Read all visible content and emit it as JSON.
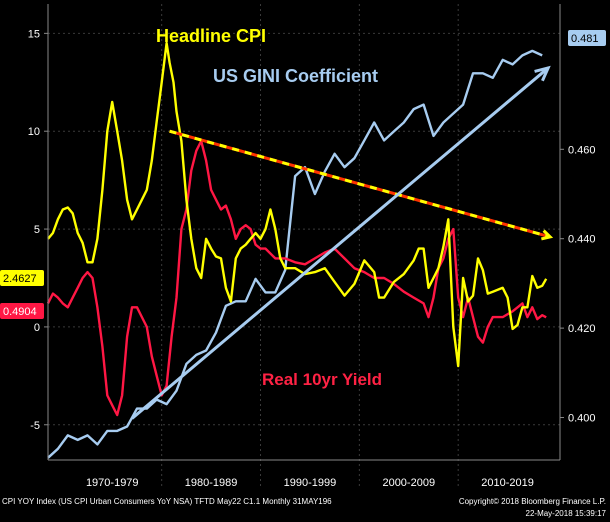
{
  "chart_data": {
    "type": "line",
    "titles": {
      "cpi": "Headline CPI",
      "gini": "US GINI Coefficient",
      "yield": "Real 10yr Yield"
    },
    "x_range": [
      1968.0,
      2019.8
    ],
    "left_axis": {
      "ticks": [
        "15",
        "10",
        "5",
        "0",
        "-5"
      ],
      "values": [
        15,
        10,
        5,
        0,
        -5
      ],
      "range": [
        -6.8,
        16.5
      ]
    },
    "right_axis": {
      "ticks": [
        "0.460",
        "0.440",
        "0.420",
        "0.400"
      ],
      "values": [
        0.46,
        0.44,
        0.42,
        0.4
      ],
      "range": [
        0.3905,
        0.4925
      ]
    },
    "x_labels": [
      "1970-1979",
      "1980-1989",
      "1990-1999",
      "2000-2009",
      "2010-2019"
    ],
    "x_label_centers": [
      1974.5,
      1984.5,
      1994.5,
      2004.5,
      2014.5
    ],
    "x_separators": [
      1979.5,
      1989.5,
      1999.5,
      2009.5
    ],
    "last_values": {
      "cpi": "2.4627",
      "yield": "0.4904",
      "gini": "0.481"
    },
    "colors": {
      "cpi": "#ffff00",
      "yield": "#ff1744",
      "gini": "#a7ccf0",
      "trend_dash_a": "#ffff00",
      "trend_dash_b": "#ff3300",
      "arrow": "#a7ccf0"
    },
    "series": [
      {
        "name": "Headline CPI",
        "axis": "left",
        "x": [
          1968.0,
          1968.5,
          1969.0,
          1969.5,
          1970.0,
          1970.5,
          1971.0,
          1971.5,
          1972.0,
          1972.5,
          1973.0,
          1973.5,
          1974.0,
          1974.5,
          1975.0,
          1975.5,
          1976.0,
          1976.5,
          1977.0,
          1977.5,
          1978.0,
          1978.5,
          1979.0,
          1979.5,
          1980.0,
          1980.3,
          1980.7,
          1981.0,
          1981.5,
          1982.0,
          1982.5,
          1983.0,
          1983.5,
          1984.0,
          1984.5,
          1985.0,
          1985.5,
          1986.0,
          1986.5,
          1987.0,
          1987.5,
          1988.0,
          1988.5,
          1989.0,
          1989.5,
          1990.0,
          1990.5,
          1991.0,
          1991.5,
          1992.0,
          1993.0,
          1994.0,
          1995.0,
          1996.0,
          1997.0,
          1998.0,
          1999.0,
          2000.0,
          2001.0,
          2001.5,
          2002.0,
          2003.0,
          2004.0,
          2005.0,
          2005.5,
          2006.0,
          2006.5,
          2007.0,
          2007.5,
          2008.0,
          2008.5,
          2009.0,
          2009.5,
          2010.0,
          2010.5,
          2011.0,
          2011.5,
          2012.0,
          2012.5,
          2013.0,
          2014.0,
          2014.5,
          2015.0,
          2015.5,
          2016.0,
          2016.5,
          2017.0,
          2017.5,
          2018.0,
          2018.4
        ],
        "values": [
          4.5,
          4.8,
          5.5,
          6.0,
          6.1,
          5.8,
          4.8,
          4.3,
          3.3,
          3.3,
          4.5,
          7.0,
          10.0,
          11.5,
          10.0,
          8.5,
          6.5,
          5.5,
          6.0,
          6.5,
          7.0,
          8.5,
          10.5,
          12.5,
          14.5,
          13.5,
          12.5,
          11.0,
          9.5,
          6.5,
          4.5,
          3.0,
          2.5,
          4.5,
          4.0,
          3.6,
          3.5,
          2.0,
          1.3,
          3.5,
          4.0,
          4.2,
          4.5,
          4.8,
          4.5,
          5.0,
          6.0,
          5.0,
          3.5,
          3.0,
          3.0,
          2.7,
          2.8,
          3.0,
          2.3,
          1.6,
          2.2,
          3.4,
          2.8,
          1.5,
          1.5,
          2.3,
          2.7,
          3.4,
          4.0,
          4.0,
          2.0,
          2.5,
          3.0,
          4.1,
          5.5,
          0.0,
          -2.0,
          2.5,
          1.3,
          1.6,
          3.5,
          2.9,
          1.7,
          1.8,
          2.0,
          1.5,
          -0.1,
          0.1,
          1.0,
          1.0,
          2.6,
          2.0,
          2.1,
          2.46
        ]
      },
      {
        "name": "Real 10yr Yield",
        "axis": "left",
        "x": [
          1968.0,
          1968.5,
          1969.0,
          1969.5,
          1970.0,
          1970.5,
          1971.0,
          1971.5,
          1972.0,
          1972.5,
          1973.0,
          1973.5,
          1974.0,
          1974.5,
          1975.0,
          1975.5,
          1976.0,
          1976.5,
          1977.0,
          1977.5,
          1978.0,
          1978.5,
          1979.0,
          1979.5,
          1980.0,
          1980.5,
          1981.0,
          1981.5,
          1982.0,
          1982.5,
          1983.0,
          1983.5,
          1984.0,
          1984.5,
          1985.0,
          1985.5,
          1986.0,
          1986.5,
          1987.0,
          1987.5,
          1988.0,
          1988.5,
          1989.0,
          1989.5,
          1990.0,
          1991.0,
          1992.0,
          1993.0,
          1994.0,
          1995.0,
          1996.0,
          1997.0,
          1998.0,
          1999.0,
          2000.0,
          2001.0,
          2002.0,
          2003.0,
          2004.0,
          2005.0,
          2006.0,
          2006.5,
          2007.0,
          2007.5,
          2008.0,
          2008.5,
          2009.0,
          2009.5,
          2010.0,
          2010.5,
          2011.0,
          2011.5,
          2012.0,
          2012.5,
          2013.0,
          2014.0,
          2015.0,
          2016.0,
          2016.5,
          2017.0,
          2017.5,
          2018.0,
          2018.4
        ],
        "values": [
          1.2,
          1.7,
          1.5,
          1.2,
          1.0,
          1.5,
          2.0,
          2.5,
          2.8,
          2.5,
          1.0,
          -1.0,
          -3.5,
          -4.0,
          -4.5,
          -3.5,
          -0.5,
          1.0,
          1.0,
          0.5,
          0.0,
          -1.5,
          -2.5,
          -3.5,
          -3.0,
          -0.5,
          1.5,
          5.0,
          6.0,
          8.0,
          9.0,
          9.5,
          8.5,
          7.0,
          6.5,
          6.0,
          6.2,
          5.5,
          4.5,
          5.0,
          5.2,
          5.0,
          4.2,
          4.0,
          4.0,
          3.5,
          3.5,
          3.3,
          3.2,
          3.5,
          3.8,
          4.0,
          3.5,
          3.0,
          2.8,
          2.5,
          2.5,
          2.2,
          1.8,
          1.5,
          1.2,
          0.5,
          1.5,
          3.0,
          3.5,
          4.5,
          5.0,
          1.5,
          0.5,
          1.5,
          0.5,
          -0.5,
          -0.8,
          0.0,
          0.5,
          0.5,
          0.8,
          1.2,
          0.5,
          1.0,
          0.4,
          0.6,
          0.49
        ]
      },
      {
        "name": "US GINI Coefficient",
        "axis": "right",
        "x": [
          1968.0,
          1969.0,
          1970.0,
          1971.0,
          1972.0,
          1973.0,
          1974.0,
          1975.0,
          1976.0,
          1977.0,
          1978.0,
          1979.0,
          1980.0,
          1981.0,
          1982.0,
          1983.0,
          1984.0,
          1985.0,
          1986.0,
          1987.0,
          1988.0,
          1989.0,
          1990.0,
          1991.0,
          1992.0,
          1993.0,
          1994.0,
          1995.0,
          1996.0,
          1997.0,
          1998.0,
          1999.0,
          2000.0,
          2001.0,
          2002.0,
          2003.0,
          2004.0,
          2005.0,
          2006.0,
          2007.0,
          2008.0,
          2009.0,
          2010.0,
          2011.0,
          2012.0,
          2013.0,
          2014.0,
          2015.0,
          2016.0,
          2017.0,
          2018.0
        ],
        "values": [
          0.391,
          0.393,
          0.396,
          0.395,
          0.396,
          0.394,
          0.397,
          0.397,
          0.398,
          0.402,
          0.402,
          0.404,
          0.403,
          0.406,
          0.412,
          0.414,
          0.415,
          0.419,
          0.425,
          0.426,
          0.426,
          0.431,
          0.428,
          0.428,
          0.433,
          0.454,
          0.456,
          0.45,
          0.455,
          0.459,
          0.456,
          0.458,
          0.462,
          0.466,
          0.462,
          0.464,
          0.466,
          0.469,
          0.47,
          0.463,
          0.466,
          0.468,
          0.47,
          0.477,
          0.477,
          0.476,
          0.48,
          0.479,
          0.481,
          0.482,
          0.481
        ]
      }
    ],
    "trend_lines": [
      {
        "name": "cpi-yield-peak-trend",
        "axis": "left",
        "x": [
          1980.3,
          2018.8
        ],
        "values": [
          10.0,
          4.6
        ],
        "style": "dashed"
      },
      {
        "name": "gini-trend-arrow",
        "axis": "right",
        "x": [
          1976.5,
          2018.6
        ],
        "values": [
          0.3998,
          0.4782
        ],
        "style": "arrow"
      }
    ],
    "grid": true,
    "legend": "none"
  },
  "footer": {
    "source": "CPI YOY Index (US CPI Urban Consumers YoY NSA) TFTD May22 C1.1  Monthly 31MAY196",
    "copyright": "Copyright© 2018 Bloomberg Finance L.P.",
    "timestamp": "22-May-2018 15:39:17"
  }
}
